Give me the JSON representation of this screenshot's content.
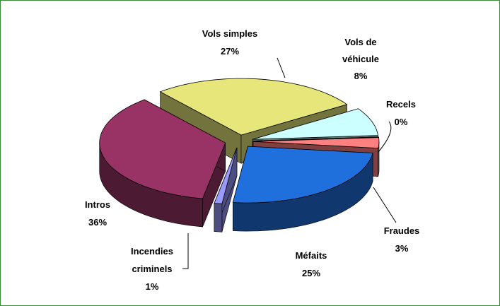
{
  "chart_data": {
    "type": "pie3d",
    "categories": [
      "Vols simples",
      "Vols de véhicule",
      "Recels",
      "Fraudes",
      "Méfaits",
      "Incendies criminels",
      "Intros"
    ],
    "values": [
      27,
      8,
      0,
      3,
      25,
      1,
      36
    ],
    "value_labels": [
      "27%",
      "8%",
      "0%",
      "3%",
      "25%",
      "1%",
      "36%"
    ],
    "colors": [
      "#e6e67a",
      "#ccffff",
      "#2a7a7a",
      "#ff8080",
      "#1f6fdc",
      "#9999ff",
      "#993366"
    ]
  }
}
